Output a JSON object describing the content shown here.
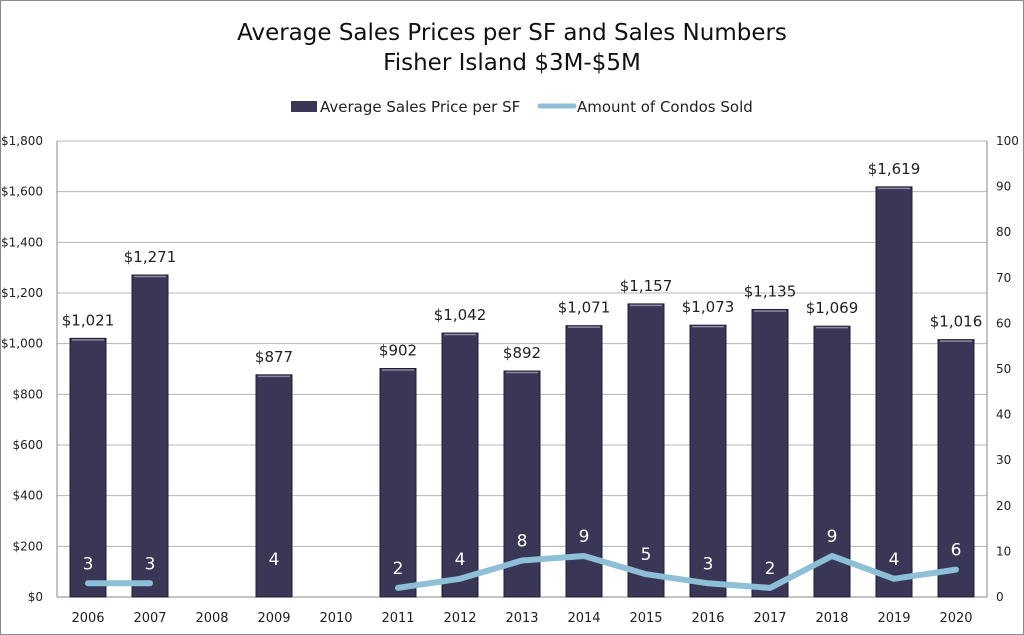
{
  "chart_data": {
    "type": "bar",
    "title": "Average Sales Prices per SF and Sales Numbers",
    "subtitle": "Fisher Island $3M-$5M",
    "categories": [
      "2006",
      "2007",
      "2008",
      "2009",
      "2010",
      "2011",
      "2012",
      "2013",
      "2014",
      "2015",
      "2016",
      "2017",
      "2018",
      "2019",
      "2020"
    ],
    "series": [
      {
        "name": "Average Sales Price per SF",
        "type": "bar",
        "axis": "left",
        "color": "#3a3656",
        "values": [
          1021,
          1271,
          null,
          877,
          null,
          902,
          1042,
          892,
          1071,
          1157,
          1073,
          1135,
          1069,
          1619,
          1016
        ],
        "labels": [
          "$1,021",
          "$1,271",
          "",
          "$877",
          "",
          "$902",
          "$1,042",
          "$892",
          "$1,071",
          "$1,157",
          "$1,073",
          "$1,135",
          "$1,069",
          "$1,619",
          "$1,016"
        ]
      },
      {
        "name": "Amount of Condos Sold",
        "type": "line",
        "axis": "right",
        "color": "#8dbfd6",
        "values": [
          3,
          3,
          null,
          4,
          null,
          2,
          4,
          8,
          9,
          5,
          3,
          2,
          9,
          4,
          6
        ],
        "labels": [
          "3",
          "3",
          "",
          "4",
          "",
          "2",
          "4",
          "8",
          "9",
          "5",
          "3",
          "2",
          "9",
          "4",
          "6"
        ]
      }
    ],
    "y_left": {
      "ylim": [
        0,
        1800
      ],
      "ticks": [
        0,
        200,
        400,
        600,
        800,
        1000,
        1200,
        1400,
        1600,
        1800
      ],
      "tick_labels": [
        "$0",
        "$200",
        "$400",
        "$600",
        "$800",
        "$1,000",
        "$1,200",
        "$1,400",
        "$1,600",
        "$1,800"
      ]
    },
    "y_right": {
      "ylim": [
        0,
        100
      ],
      "ticks": [
        0,
        10,
        20,
        30,
        40,
        50,
        60,
        70,
        80,
        90,
        100
      ],
      "tick_labels": [
        "0",
        "10",
        "20",
        "30",
        "40",
        "50",
        "60",
        "70",
        "80",
        "90",
        "100"
      ]
    },
    "grid": true,
    "legend_position": "top"
  }
}
